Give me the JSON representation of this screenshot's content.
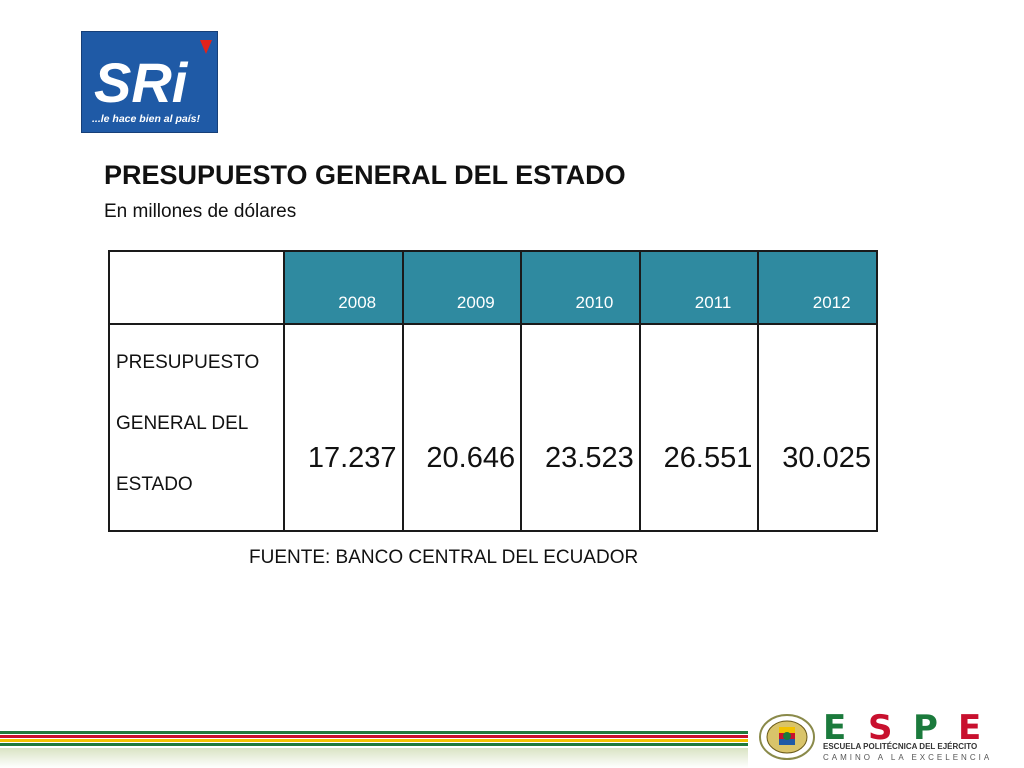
{
  "logo": {
    "brand": "SRi",
    "tagline": "...le hace bien al país!",
    "colors": {
      "background": "#1f5aa6",
      "accent": "#e2231a"
    }
  },
  "title": "PRESUPUESTO GENERAL DEL ESTADO",
  "subtitle": "En millones de dólares",
  "table": {
    "years": [
      "2008",
      "2009",
      "2010",
      "2011",
      "2012"
    ],
    "row_label_lines": [
      "PRESUPUESTO",
      "GENERAL DEL",
      "ESTADO"
    ],
    "values": [
      "17.237",
      "20.646",
      "23.523",
      "26.551",
      "30.025"
    ],
    "header_color": "#2f8aa0"
  },
  "source": "FUENTE: BANCO CENTRAL DEL ECUADOR",
  "footer": {
    "espe_letters": [
      "E",
      "S",
      "P",
      "E"
    ],
    "line1": "ESCUELA POLITÉCNICA DEL EJÉRCITO",
    "line2": "CAMINO A LA EXCELENCIA",
    "stripe_colors": [
      "#1f7a3c",
      "#c8102e",
      "#f2c200",
      "#1f7a3c"
    ]
  }
}
